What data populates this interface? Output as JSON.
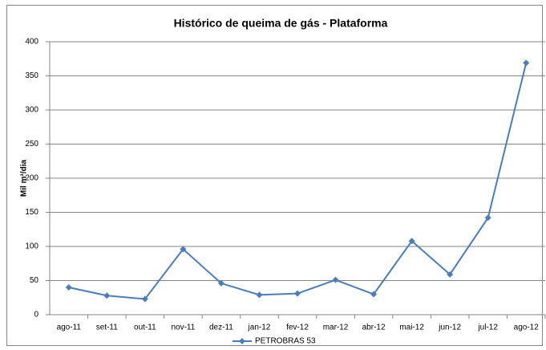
{
  "chart_data": {
    "type": "line",
    "title": "Histórico de queima de gás - Plataforma",
    "y_label": "Mil m³/dia",
    "categories": [
      "ago-11",
      "set-11",
      "out-11",
      "nov-11",
      "dez-11",
      "jan-12",
      "fev-12",
      "mar-12",
      "abr-12",
      "mai-12",
      "jun-12",
      "jul-12",
      "ago-12"
    ],
    "series": [
      {
        "name": "PETROBRAS 53",
        "color": "#4a7ebb",
        "values": [
          40,
          28,
          23,
          96,
          46,
          29,
          31,
          51,
          30,
          108,
          59,
          142,
          369
        ]
      }
    ],
    "ylim": [
      0,
      400
    ],
    "yticks": [
      0,
      50,
      100,
      150,
      200,
      250,
      300,
      350,
      400
    ],
    "grid": true,
    "legend": "bottom"
  }
}
